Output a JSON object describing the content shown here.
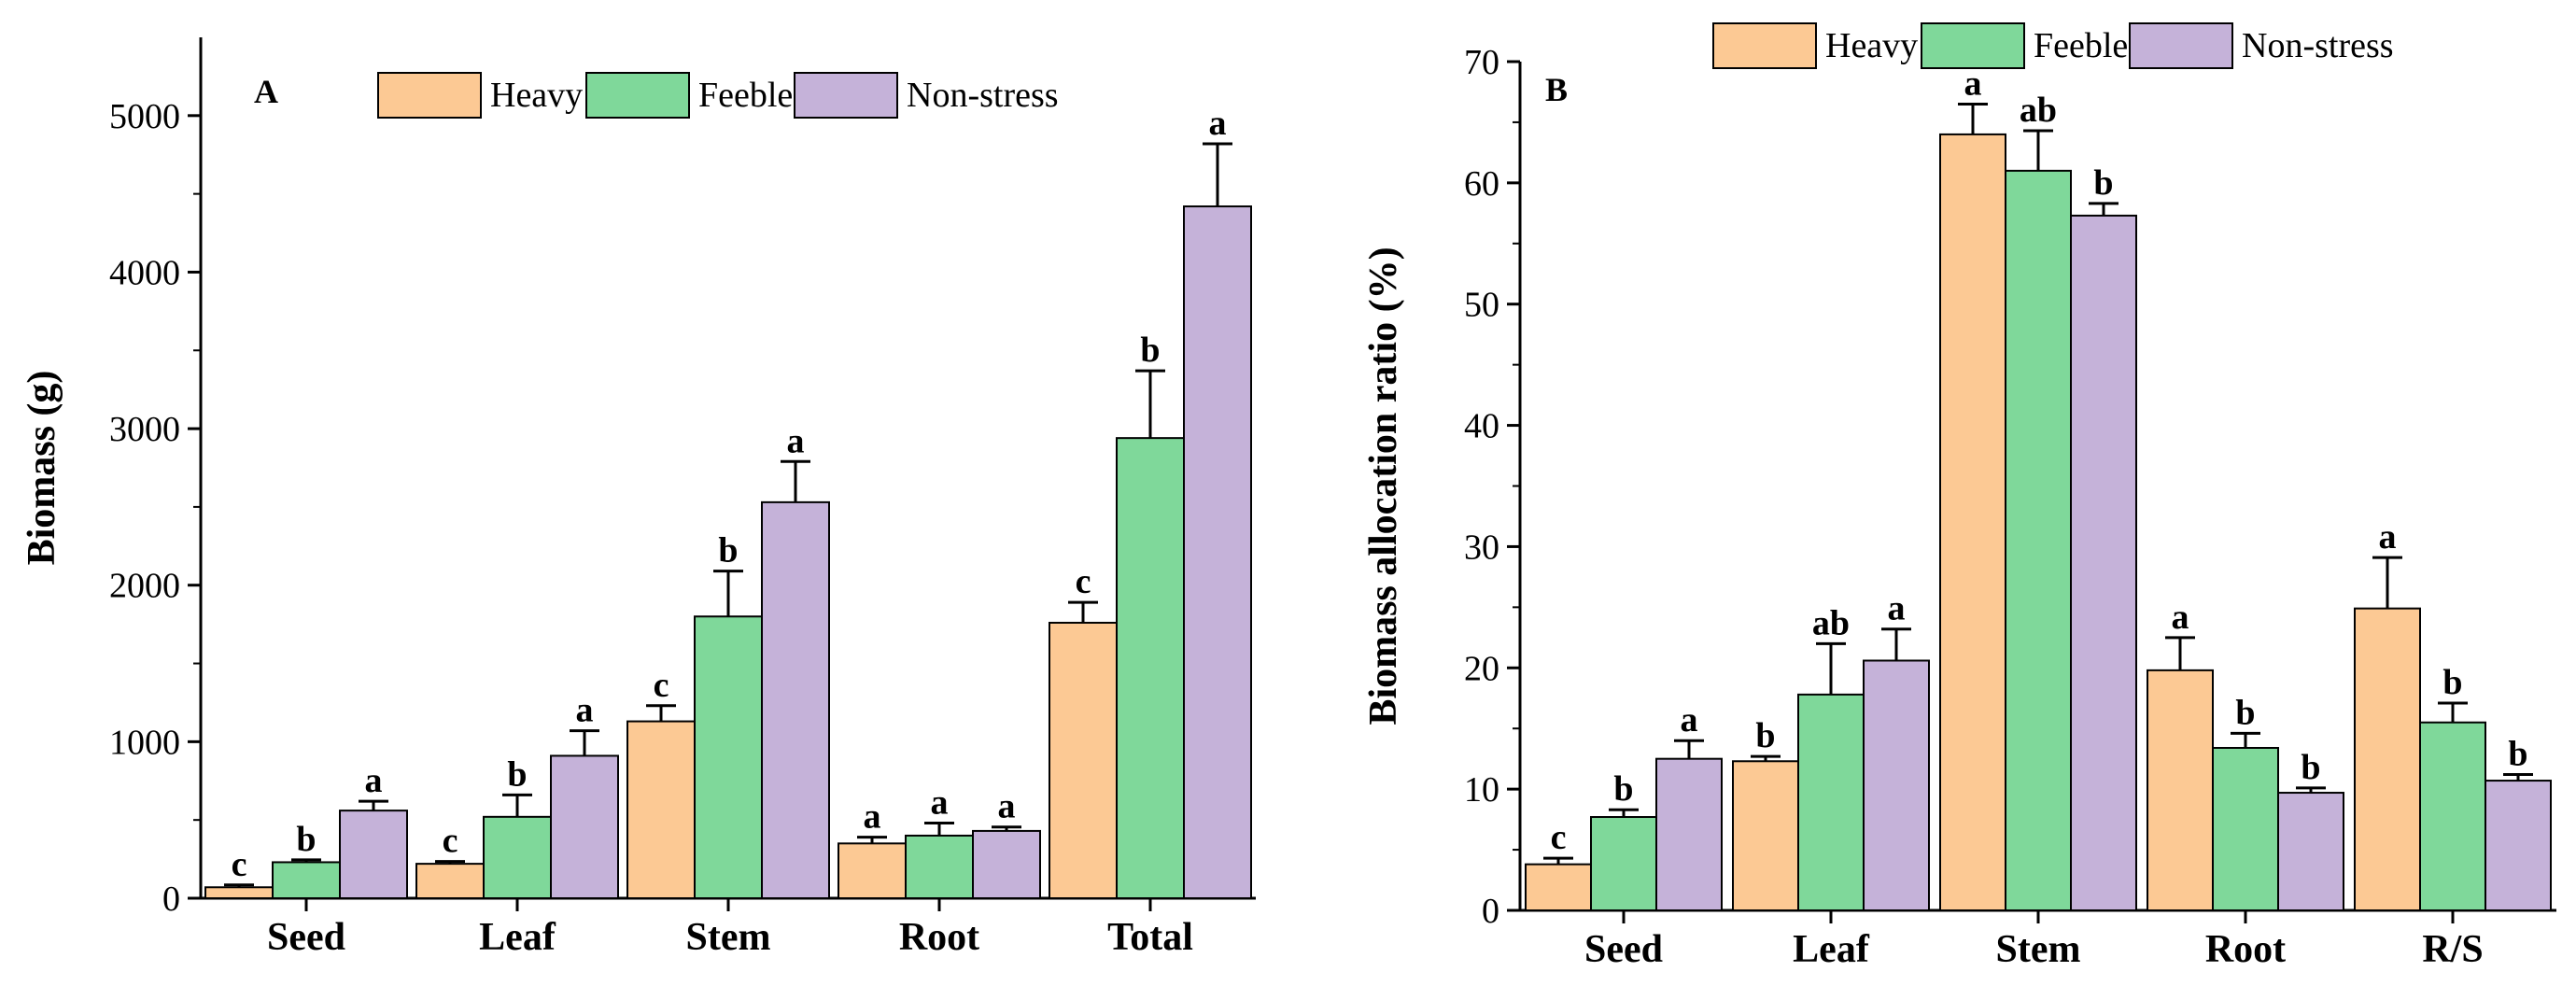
{
  "figure": {
    "series_colors": {
      "Heavy": "#fcc994",
      "Feeble": "#7fd89a",
      "Non-stress": "#c5b2d9"
    }
  },
  "chart_data": [
    {
      "type": "bar",
      "panel": "A",
      "ylabel": "Biomass (g)",
      "xlabel": "",
      "ylim": [
        0,
        5500
      ],
      "yticks": [
        0,
        1000,
        2000,
        3000,
        4000,
        5000
      ],
      "grid": false,
      "legend": "top-center",
      "categories": [
        "Seed",
        "Leaf",
        "Stem",
        "Root",
        "Total"
      ],
      "series": [
        {
          "name": "Heavy",
          "color": "#fcc994",
          "values": [
            70,
            220,
            1130,
            350,
            1760
          ],
          "errors": [
            15,
            15,
            100,
            40,
            130
          ],
          "labels": [
            "c",
            "c",
            "c",
            "a",
            "c"
          ]
        },
        {
          "name": "Feeble",
          "color": "#7fd89a",
          "values": [
            230,
            520,
            1800,
            400,
            2940
          ],
          "errors": [
            15,
            140,
            290,
            80,
            430
          ],
          "labels": [
            "b",
            "b",
            "b",
            "a",
            "b"
          ]
        },
        {
          "name": "Non-stress",
          "color": "#c5b2d9",
          "values": [
            560,
            910,
            2530,
            430,
            4420
          ],
          "errors": [
            60,
            160,
            260,
            25,
            400
          ],
          "labels": [
            "a",
            "a",
            "a",
            "a",
            "a"
          ]
        }
      ]
    },
    {
      "type": "bar",
      "panel": "B",
      "ylabel": "Biomass allocation ratio  (%)",
      "xlabel": "",
      "ylim": [
        0,
        70
      ],
      "yticks": [
        0,
        10,
        20,
        30,
        40,
        50,
        60,
        70
      ],
      "grid": false,
      "legend": "top-center",
      "categories": [
        "Seed",
        "Leaf",
        "Stem",
        "Root",
        "R/S"
      ],
      "series": [
        {
          "name": "Heavy",
          "color": "#fcc994",
          "values": [
            3.8,
            12.3,
            64.0,
            19.8,
            24.9
          ],
          "errors": [
            0.5,
            0.4,
            2.5,
            2.7,
            4.2
          ],
          "labels": [
            "c",
            "b",
            "a",
            "a",
            "a"
          ]
        },
        {
          "name": "Feeble",
          "color": "#7fd89a",
          "values": [
            7.7,
            17.8,
            61.0,
            13.4,
            15.5
          ],
          "errors": [
            0.6,
            4.2,
            3.3,
            1.2,
            1.6
          ],
          "labels": [
            "b",
            "ab",
            "ab",
            "b",
            "b"
          ]
        },
        {
          "name": "Non-stress",
          "color": "#c5b2d9",
          "values": [
            12.5,
            20.6,
            57.3,
            9.7,
            10.7
          ],
          "errors": [
            1.5,
            2.6,
            1.0,
            0.4,
            0.5
          ],
          "labels": [
            "a",
            "a",
            "b",
            "b",
            "b"
          ]
        }
      ]
    }
  ]
}
